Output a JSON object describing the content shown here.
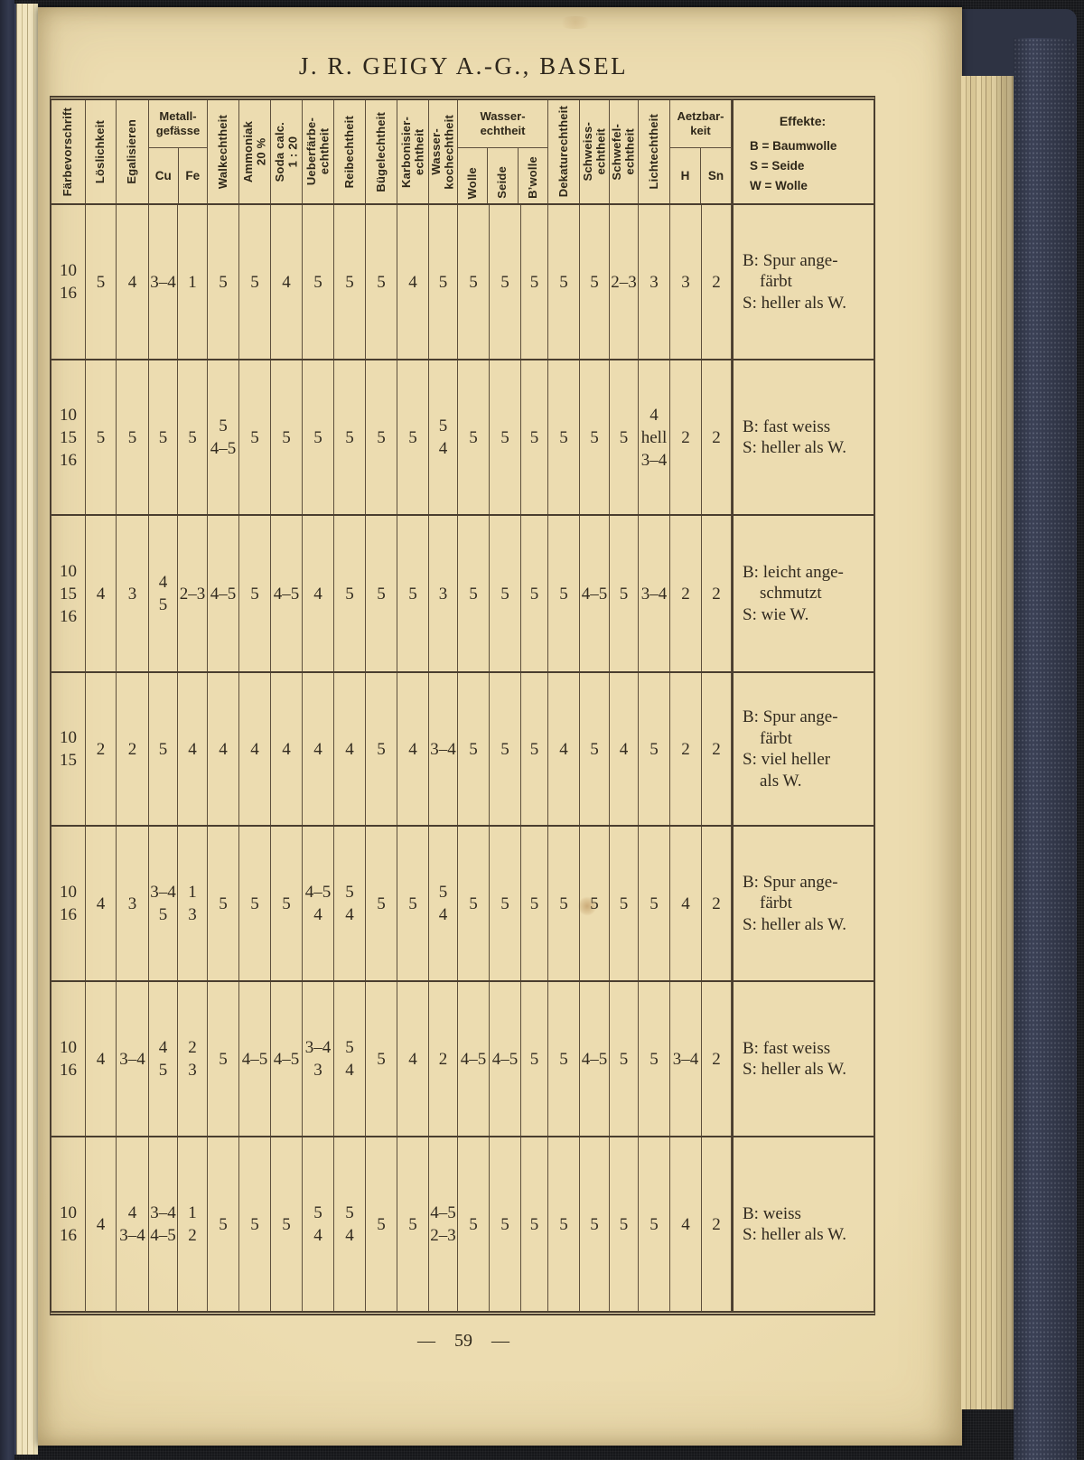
{
  "page": {
    "title": "J. R. GEIGY A.-G., BASEL",
    "page_number": "— 59 —"
  },
  "table": {
    "headers": {
      "faerbevorschrift": "Färbevorschrift",
      "loeslichkeit": "Löslichkeit",
      "egalisieren": "Egalisieren",
      "metallgefaesse": "Metall-\ngefässe",
      "cu": "Cu",
      "fe": "Fe",
      "walkechtheit": "Walkechtheit",
      "ammoniak": "Ammoniak\n20 %",
      "soda": "Soda calc.\n1 : 20",
      "ueberfaerbe": "Ueberfärbe-\nechtheit",
      "reibechtheit": "Reibechtheit",
      "buegelechtheit": "Bügelechtheit",
      "karbonisier": "Karbonisier-\nechtheit",
      "wasserkoch": "Wasser-\nkochechtheit",
      "wasserechtheit": "Wasser-\nechtheit",
      "wolle": "Wolle",
      "seide": "Seide",
      "bwolle": "B’wolle",
      "dekatur": "Dekaturechtheit",
      "schweiss": "Schweiss-\nechtheit",
      "schwefel": "Schwefel-\nechtheit",
      "licht": "Lichtechtheit",
      "aetzbarkeit": "Aetzbar-\nkeit",
      "h": "H",
      "sn": "Sn",
      "effekte_title": "Effekte:",
      "effekte_legend": "B = Baumwolle\nS = Seide\nW = Wolle"
    },
    "rows": [
      {
        "fv": "10\n16",
        "cells": [
          "5",
          "4",
          "3–4",
          "1",
          "5",
          "5",
          "4",
          "5",
          "5",
          "5",
          "4",
          "5",
          "5",
          "5",
          "5",
          "5",
          "5",
          "2–3",
          "3",
          "3",
          "2"
        ],
        "effekte": "B: Spur ange-\n    färbt\nS: heller als W."
      },
      {
        "fv": "10\n15\n16",
        "cells": [
          "5",
          "5",
          "5",
          "5",
          "5\n4–5",
          "5",
          "5",
          "5",
          "5",
          "5",
          "5",
          "5\n4",
          "5",
          "5",
          "5",
          "5",
          "5",
          "5",
          "4\nhell\n3–4",
          "2",
          "2"
        ],
        "effekte": "B: fast weiss\nS: heller als W."
      },
      {
        "fv": "10\n15\n16",
        "cells": [
          "4",
          "3",
          "4\n5",
          "2–3",
          "4–5",
          "5",
          "4–5",
          "4",
          "5",
          "5",
          "5",
          "3",
          "5",
          "5",
          "5",
          "5",
          "4–5",
          "5",
          "3–4",
          "2",
          "2"
        ],
        "effekte": "B: leicht ange-\n    schmutzt\nS: wie W."
      },
      {
        "fv": "10\n15",
        "cells": [
          "2",
          "2",
          "5",
          "4",
          "4",
          "4",
          "4",
          "4",
          "4",
          "5",
          "4",
          "3–4",
          "5",
          "5",
          "5",
          "4",
          "5",
          "4",
          "5",
          "2",
          "2"
        ],
        "effekte": "B: Spur ange-\n    färbt\nS: viel heller\n    als W."
      },
      {
        "fv": "10\n16",
        "cells": [
          "4",
          "3",
          "3–4\n5",
          "1\n3",
          "5",
          "5",
          "5",
          "4–5\n4",
          "5\n4",
          "5",
          "5",
          "5\n4",
          "5",
          "5",
          "5",
          "5",
          "5",
          "5",
          "5",
          "4",
          "2"
        ],
        "effekte": "B: Spur ange-\n    färbt\nS: heller als W."
      },
      {
        "fv": "10\n16",
        "cells": [
          "4",
          "3–4",
          "4\n5",
          "2\n3",
          "5",
          "4–5",
          "4–5",
          "3–4\n3",
          "5\n4",
          "5",
          "4",
          "2",
          "4–5",
          "4–5",
          "5",
          "5",
          "4–5",
          "5",
          "5",
          "3–4",
          "2"
        ],
        "effekte": "B: fast weiss\nS: heller als W."
      },
      {
        "fv": "10\n16",
        "cells": [
          "4",
          "4\n3–4",
          "3–4\n4–5",
          "1\n2",
          "5",
          "5",
          "5",
          "5\n4",
          "5\n4",
          "5",
          "5",
          "4–5\n2–3",
          "5",
          "5",
          "5",
          "5",
          "5",
          "5",
          "5",
          "4",
          "2"
        ],
        "effekte": "B: weiss\nS: heller als W."
      }
    ]
  }
}
